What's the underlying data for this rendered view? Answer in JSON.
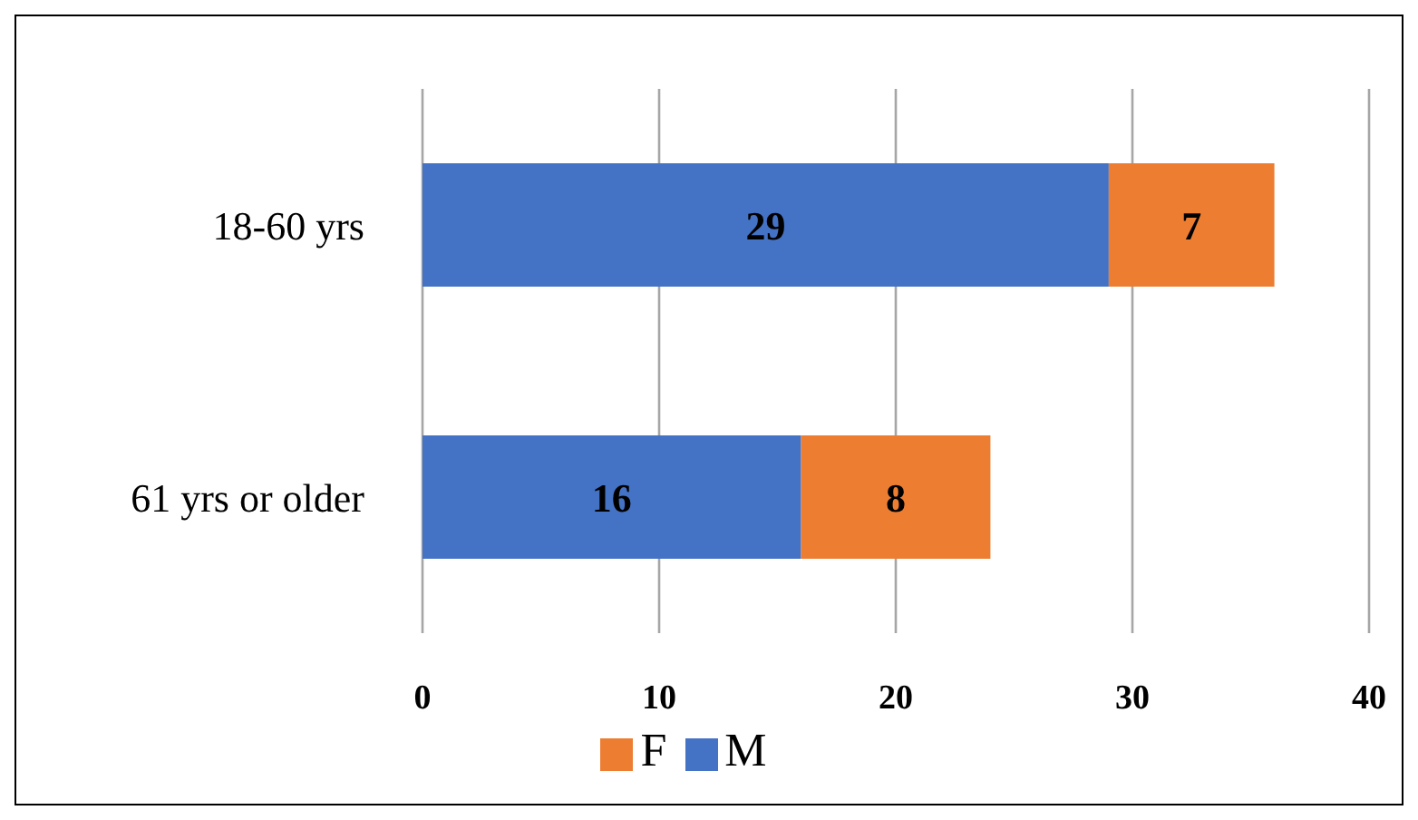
{
  "chart_data": {
    "type": "bar",
    "orientation": "horizontal",
    "stacked": true,
    "categories": [
      "18-60 yrs",
      "61 yrs or older"
    ],
    "series": [
      {
        "name": "M",
        "color": "#4472c4",
        "values": [
          29,
          16
        ]
      },
      {
        "name": "F",
        "color": "#ed7d31",
        "values": [
          7,
          8
        ]
      }
    ],
    "xlim": [
      0,
      40
    ],
    "xticks": [
      0,
      10,
      20,
      30,
      40
    ],
    "grid": "x",
    "legend": "bottom",
    "data_labels": true
  }
}
